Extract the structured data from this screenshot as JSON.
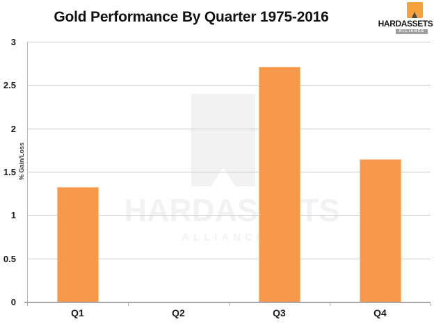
{
  "title": "Gold Performance By Quarter 1975-2016",
  "logo": {
    "brand": "HARDASSETS",
    "sub": "ALLIANCE",
    "icon": "gold-vault-icon"
  },
  "watermark": {
    "brand": "HARDASSETS",
    "sub": "ALLIANCE"
  },
  "colors": {
    "bar": "#F7984B",
    "logo_orange": "#F6A13C",
    "gridline": "#c9c9c9",
    "axis": "#a8a8a8",
    "watermark": "#f2f2f2"
  },
  "chart_data": {
    "type": "bar",
    "title": "Gold Performance By Quarter 1975-2016",
    "categories": [
      "Q1",
      "Q2",
      "Q3",
      "Q4"
    ],
    "values": [
      1.33,
      0,
      2.72,
      1.65
    ],
    "xlabel": "",
    "ylabel": "% Gain/Loss",
    "ylim": [
      0,
      3
    ],
    "yticks": [
      0,
      0.5,
      1,
      1.5,
      2,
      2.5,
      3
    ],
    "grid": true,
    "legend": false,
    "bar_color": "#F7984B"
  }
}
